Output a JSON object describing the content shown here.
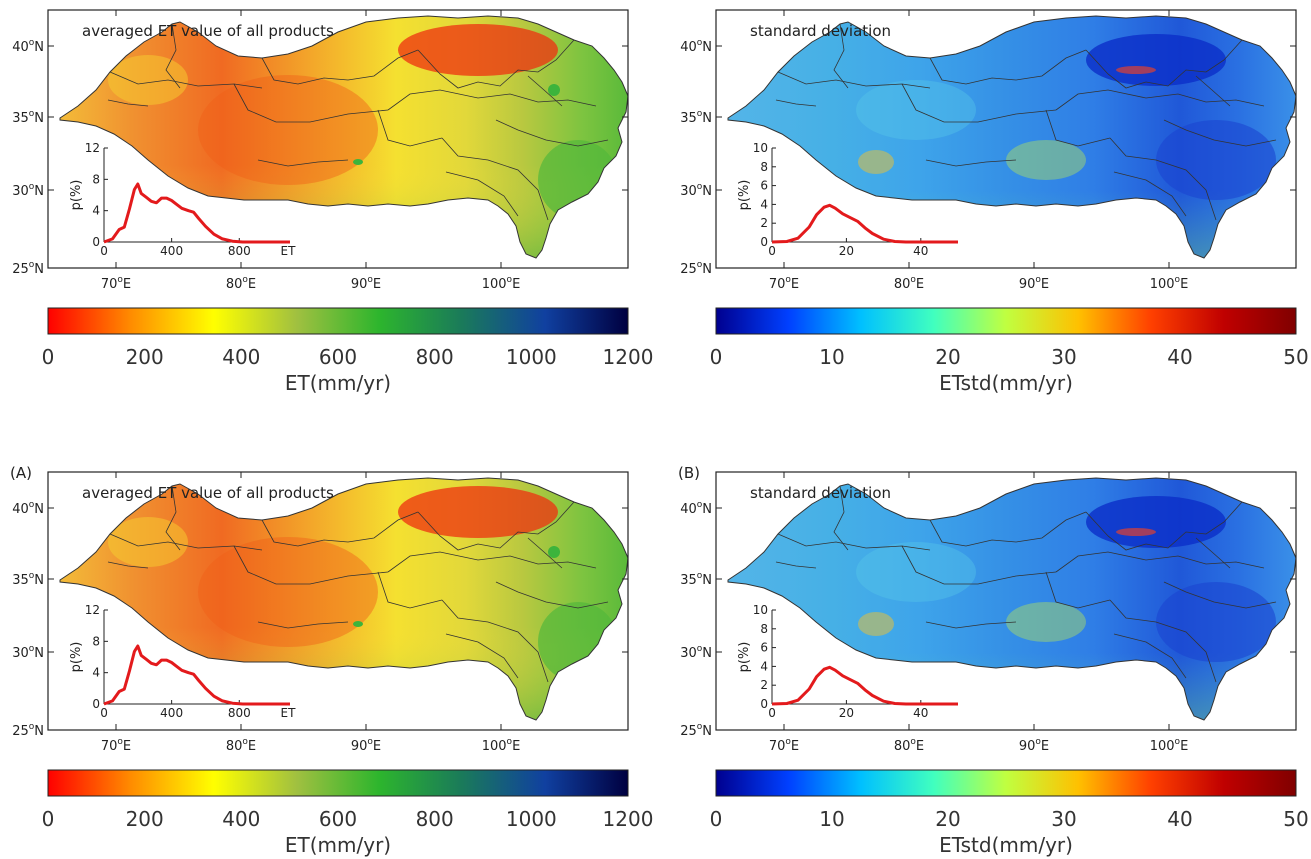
{
  "panels": [
    {
      "letter": "",
      "title": "averaged ET value of all products",
      "y_ticks": [
        "40",
        "35",
        "30",
        "25"
      ],
      "x_ticks": [
        "70",
        "80",
        "90",
        "100"
      ],
      "lat_suffix": "N",
      "lon_suffix": "E",
      "deg": "o",
      "inset": {
        "ylabel": "p(%)",
        "yticks": [
          "0",
          "4",
          "8",
          "12"
        ],
        "xticks": [
          "0",
          "400",
          "800"
        ],
        "xlabel": "ET",
        "ymax": 12,
        "xmax": 1100,
        "line_color": "#e31a1c",
        "points": [
          [
            0,
            0
          ],
          [
            50,
            0.4
          ],
          [
            90,
            1.6
          ],
          [
            120,
            1.9
          ],
          [
            150,
            4.2
          ],
          [
            180,
            6.7
          ],
          [
            200,
            7.4
          ],
          [
            220,
            6.2
          ],
          [
            250,
            5.7
          ],
          [
            280,
            5.2
          ],
          [
            310,
            5.0
          ],
          [
            340,
            5.6
          ],
          [
            370,
            5.6
          ],
          [
            400,
            5.3
          ],
          [
            430,
            4.8
          ],
          [
            460,
            4.3
          ],
          [
            500,
            4.0
          ],
          [
            530,
            3.8
          ],
          [
            560,
            3.0
          ],
          [
            600,
            2.0
          ],
          [
            650,
            1.0
          ],
          [
            700,
            0.4
          ],
          [
            760,
            0.1
          ],
          [
            820,
            0
          ],
          [
            1100,
            0
          ]
        ]
      },
      "colorbar": {
        "ticks": [
          "0",
          "200",
          "400",
          "600",
          "800",
          "1000",
          "1200"
        ],
        "label": "ET(mm/yr)",
        "colors": [
          "#ff0000",
          "#ff8c00",
          "#ffff00",
          "#a0c040",
          "#2db52d",
          "#1a7a5a",
          "#1040a0",
          "#000040"
        ]
      },
      "map_style": "et"
    },
    {
      "letter": "",
      "title": "standard deviation",
      "y_ticks": [
        "40",
        "35",
        "30",
        "25"
      ],
      "x_ticks": [
        "70",
        "80",
        "90",
        "100"
      ],
      "lat_suffix": "N",
      "lon_suffix": "E",
      "deg": "o",
      "inset": {
        "ylabel": "p(%)",
        "yticks": [
          "0",
          "2",
          "4",
          "6",
          "8",
          "10"
        ],
        "xticks": [
          "0",
          "20",
          "40"
        ],
        "xlabel": "",
        "ymax": 10,
        "xmax": 50,
        "line_color": "#e31a1c",
        "points": [
          [
            0,
            0
          ],
          [
            4,
            0.05
          ],
          [
            7,
            0.4
          ],
          [
            10,
            1.6
          ],
          [
            12,
            2.9
          ],
          [
            14,
            3.7
          ],
          [
            15.5,
            3.9
          ],
          [
            17,
            3.6
          ],
          [
            19,
            3.0
          ],
          [
            21,
            2.6
          ],
          [
            23,
            2.2
          ],
          [
            25,
            1.5
          ],
          [
            27,
            0.9
          ],
          [
            30,
            0.3
          ],
          [
            33,
            0.05
          ],
          [
            36,
            0
          ],
          [
            50,
            0
          ]
        ]
      },
      "colorbar": {
        "ticks": [
          "0",
          "10",
          "20",
          "30",
          "40",
          "50"
        ],
        "label": "ETstd(mm/yr)",
        "colors": [
          "#00008f",
          "#0040ff",
          "#00c0ff",
          "#40ffbf",
          "#c0ff40",
          "#ffc000",
          "#ff4000",
          "#c00000",
          "#800000"
        ]
      },
      "map_style": "std"
    },
    {
      "letter": "(A)",
      "title": "averaged ET value of all products",
      "y_ticks": [
        "40",
        "35",
        "30",
        "25"
      ],
      "x_ticks": [
        "70",
        "80",
        "90",
        "100"
      ],
      "lat_suffix": "N",
      "lon_suffix": "E",
      "deg": "o",
      "inset": {
        "ylabel": "p(%)",
        "yticks": [
          "0",
          "4",
          "8",
          "12"
        ],
        "xticks": [
          "0",
          "400",
          "800"
        ],
        "xlabel": "ET",
        "ymax": 12,
        "xmax": 1100,
        "line_color": "#e31a1c",
        "points": [
          [
            0,
            0
          ],
          [
            50,
            0.4
          ],
          [
            90,
            1.6
          ],
          [
            120,
            1.9
          ],
          [
            150,
            4.2
          ],
          [
            180,
            6.7
          ],
          [
            200,
            7.4
          ],
          [
            220,
            6.2
          ],
          [
            250,
            5.7
          ],
          [
            280,
            5.2
          ],
          [
            310,
            5.0
          ],
          [
            340,
            5.6
          ],
          [
            370,
            5.6
          ],
          [
            400,
            5.3
          ],
          [
            430,
            4.8
          ],
          [
            460,
            4.3
          ],
          [
            500,
            4.0
          ],
          [
            530,
            3.8
          ],
          [
            560,
            3.0
          ],
          [
            600,
            2.0
          ],
          [
            650,
            1.0
          ],
          [
            700,
            0.4
          ],
          [
            760,
            0.1
          ],
          [
            820,
            0
          ],
          [
            1100,
            0
          ]
        ]
      },
      "colorbar": {
        "ticks": [
          "0",
          "200",
          "400",
          "600",
          "800",
          "1000",
          "1200"
        ],
        "label": "ET(mm/yr)",
        "colors": [
          "#ff0000",
          "#ff8c00",
          "#ffff00",
          "#a0c040",
          "#2db52d",
          "#1a7a5a",
          "#1040a0",
          "#000040"
        ]
      },
      "map_style": "et"
    },
    {
      "letter": "(B)",
      "title": "standard deviation",
      "y_ticks": [
        "40",
        "35",
        "30",
        "25"
      ],
      "x_ticks": [
        "70",
        "80",
        "90",
        "100"
      ],
      "lat_suffix": "N",
      "lon_suffix": "E",
      "deg": "o",
      "inset": {
        "ylabel": "p(%)",
        "yticks": [
          "0",
          "2",
          "4",
          "6",
          "8",
          "10"
        ],
        "xticks": [
          "0",
          "20",
          "40"
        ],
        "xlabel": "",
        "ymax": 10,
        "xmax": 50,
        "line_color": "#e31a1c",
        "points": [
          [
            0,
            0
          ],
          [
            4,
            0.05
          ],
          [
            7,
            0.4
          ],
          [
            10,
            1.6
          ],
          [
            12,
            2.9
          ],
          [
            14,
            3.7
          ],
          [
            15.5,
            3.9
          ],
          [
            17,
            3.6
          ],
          [
            19,
            3.0
          ],
          [
            21,
            2.6
          ],
          [
            23,
            2.2
          ],
          [
            25,
            1.5
          ],
          [
            27,
            0.9
          ],
          [
            30,
            0.3
          ],
          [
            33,
            0.05
          ],
          [
            36,
            0
          ],
          [
            50,
            0
          ]
        ]
      },
      "colorbar": {
        "ticks": [
          "0",
          "10",
          "20",
          "30",
          "40",
          "50"
        ],
        "label": "ETstd(mm/yr)",
        "colors": [
          "#00008f",
          "#0040ff",
          "#00c0ff",
          "#40ffbf",
          "#c0ff40",
          "#ffc000",
          "#ff4000",
          "#c00000",
          "#800000"
        ]
      },
      "map_style": "std"
    }
  ]
}
